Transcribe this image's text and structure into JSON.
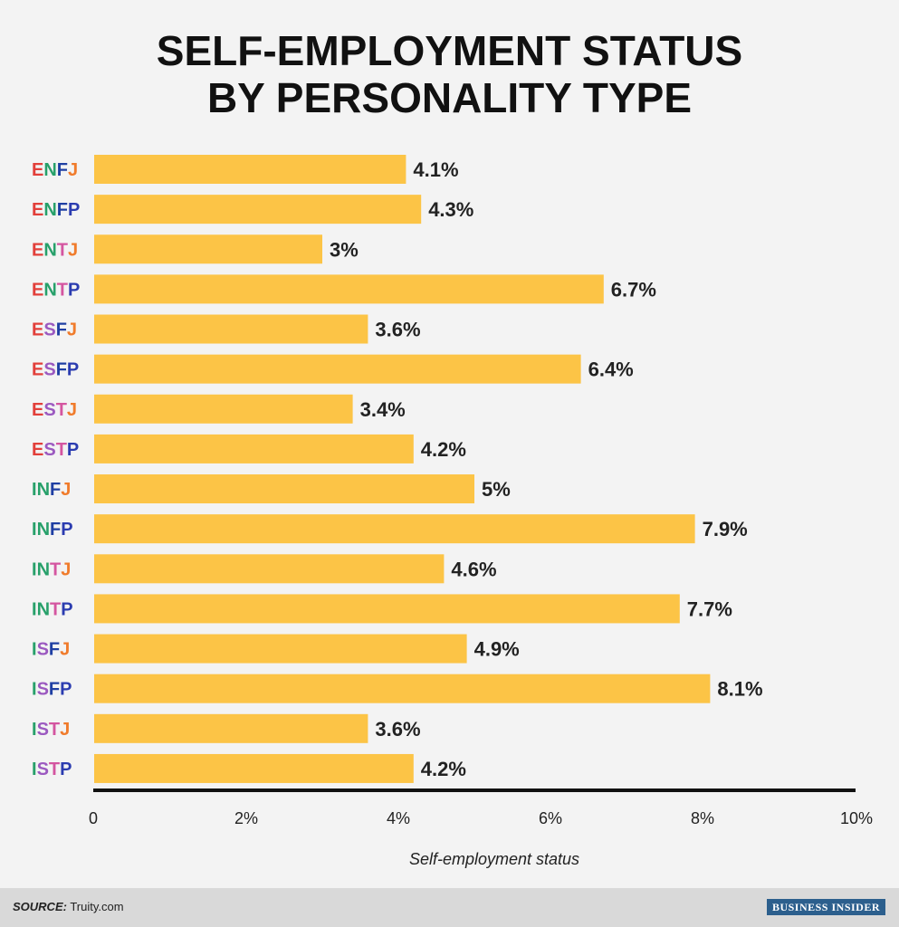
{
  "chart_data": {
    "type": "bar",
    "orientation": "horizontal",
    "title_lines": [
      "SELF-EMPLOYMENT STATUS",
      "BY PERSONALITY TYPE"
    ],
    "categories": [
      "ENFJ",
      "ENFP",
      "ENTJ",
      "ENTP",
      "ESFJ",
      "ESFP",
      "ESTJ",
      "ESTP",
      "INFJ",
      "INFP",
      "INTJ",
      "INTP",
      "ISFJ",
      "ISFP",
      "ISTJ",
      "ISTP"
    ],
    "values": [
      4.1,
      4.3,
      3,
      6.7,
      3.6,
      6.4,
      3.4,
      4.2,
      5,
      7.9,
      4.6,
      7.7,
      4.9,
      8.1,
      3.6,
      4.2
    ],
    "value_labels": [
      "4.1%",
      "4.3%",
      "3%",
      "6.7%",
      "3.6%",
      "6.4%",
      "3.4%",
      "4.2%",
      "5%",
      "7.9%",
      "4.6%",
      "7.7%",
      "4.9%",
      "8.1%",
      "3.6%",
      "4.2%"
    ],
    "xlim": [
      0,
      10
    ],
    "xticks": [
      0,
      2,
      4,
      6,
      8,
      10
    ],
    "xtick_labels": [
      "0",
      "2%",
      "4%",
      "6%",
      "8%",
      "10%"
    ],
    "xlabel": "Self-employment status",
    "ylabel": "",
    "bar_color": "#fcc446",
    "letter_colors": {
      "E": "#e23f3a",
      "I": "#27a06a",
      "N": "#27a06a",
      "S": "#9b59c0",
      "T": "#d455a0",
      "F": "#1f3fa3",
      "J": "#f07b2b",
      "P": "#2b3cb0"
    }
  },
  "footer": {
    "source_label": "SOURCE:",
    "source_text": "Truity.com",
    "brand": "BUSINESS INSIDER"
  }
}
